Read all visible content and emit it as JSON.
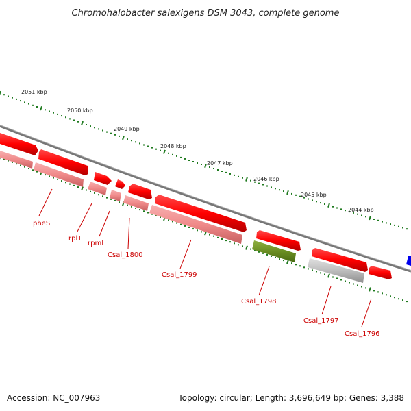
{
  "title": "Chromohalobacter salexigens DSM 3043, complete genome",
  "footer": {
    "accession": "Accession: NC_007963",
    "topology": "Topology: circular; Length: 3,696,649 bp; Genes: 3,388"
  },
  "colors": {
    "backbone": "#777777",
    "tick": "#1f7a1f",
    "gene_forward": "#ff0000",
    "gene_forward_light": "#f08a8a",
    "gene_other": "#6b8e23",
    "gene_grey": "#bdbdbd",
    "label": "#cc0000",
    "blue_feature": "#0000ee"
  },
  "scale_labels": [
    "2051 kbp",
    "2050 kbp",
    "2049 kbp",
    "2048 kbp",
    "2047 kbp",
    "2046 kbp",
    "2045 kbp",
    "2044 kbp"
  ],
  "gene_labels": [
    "pheS",
    "rplT",
    "rpmI",
    "Csal_1800",
    "Csal_1799",
    "Csal_1798",
    "Csal_1797",
    "Csal_1796"
  ]
}
